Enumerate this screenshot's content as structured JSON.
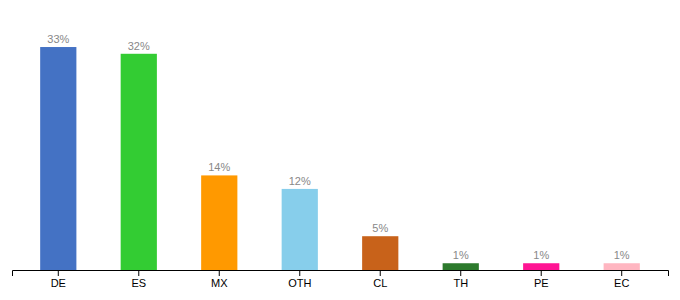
{
  "chart_data": {
    "type": "bar",
    "categories": [
      "DE",
      "ES",
      "MX",
      "OTH",
      "CL",
      "TH",
      "PE",
      "EC"
    ],
    "values": [
      33,
      32,
      14,
      12,
      5,
      1,
      1,
      1
    ],
    "value_labels": [
      "33%",
      "32%",
      "14%",
      "12%",
      "5%",
      "1%",
      "1%",
      "1%"
    ],
    "colors": [
      "#4472c4",
      "#33cc33",
      "#ff9900",
      "#87ceeb",
      "#c8621a",
      "#2d7a2d",
      "#ff1493",
      "#ffb6c1"
    ],
    "ylim": [
      0,
      37
    ],
    "data_labels": true,
    "tick_labels": "x",
    "grid": false
  }
}
